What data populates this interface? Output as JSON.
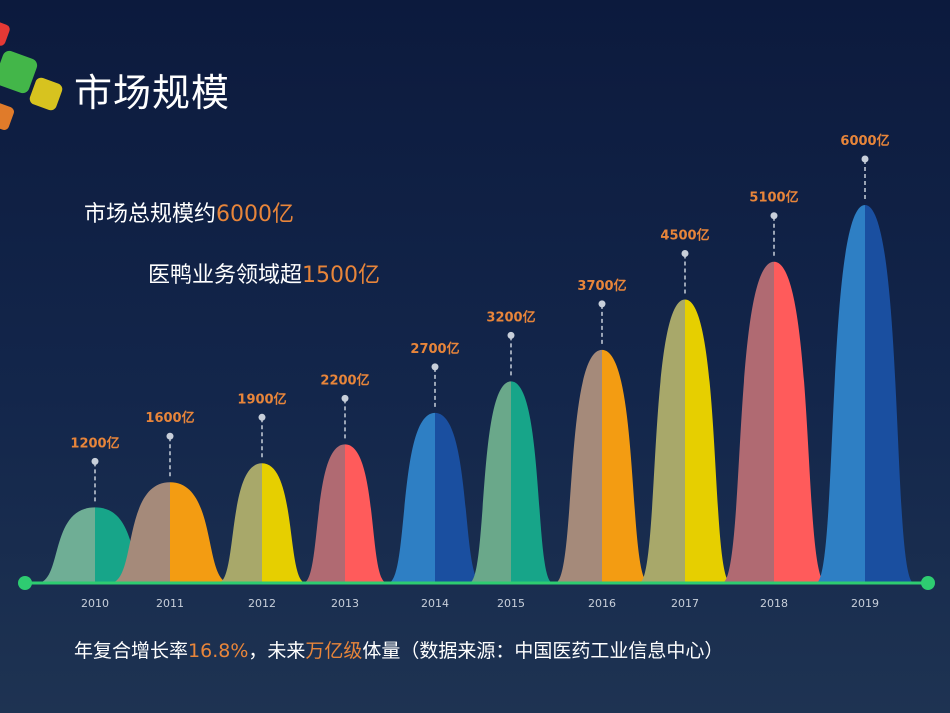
{
  "header": {
    "title": "市场规模"
  },
  "summary": {
    "line1_prefix": "市场总规模约",
    "line1_value": "6000亿",
    "line2_prefix": "医鸭业务领域超",
    "line2_value": "1500亿"
  },
  "footnote": {
    "part1": "年复合增长率",
    "part2": "16.8%",
    "part3": "，未来",
    "part4": "万亿级",
    "part5": "体量（数据来源：中国医药工业信息中心）"
  },
  "colors": {
    "accent": "#e8853a",
    "baseline": "#2ecc71",
    "pairs": [
      [
        "#6fae95",
        "#17a589"
      ],
      [
        "#a58a7a",
        "#f39c12"
      ],
      [
        "#a8a86a",
        "#e6cf00"
      ],
      [
        "#b06a72",
        "#ff5b5b"
      ],
      [
        "#2e7fc4",
        "#1a4fa0"
      ],
      [
        "#6aa88a",
        "#17a589"
      ],
      [
        "#a58a7a",
        "#f39c12"
      ],
      [
        "#a8a86a",
        "#e6cf00"
      ],
      [
        "#b06a72",
        "#ff5b5b"
      ],
      [
        "#2e7fc4",
        "#1a4fa0"
      ]
    ]
  },
  "chart_data": {
    "type": "area",
    "categories": [
      "2010",
      "2011",
      "2012",
      "2013",
      "2014",
      "2015",
      "2016",
      "2017",
      "2018",
      "2019"
    ],
    "values": [
      1200,
      1600,
      1900,
      2200,
      2700,
      3200,
      3700,
      4500,
      5100,
      6000
    ],
    "value_labels": [
      "1200亿",
      "1600亿",
      "1900亿",
      "2200亿",
      "2700亿",
      "3200亿",
      "3700亿",
      "4500亿",
      "5100亿",
      "6000亿"
    ],
    "grid": false,
    "legend": "none"
  }
}
